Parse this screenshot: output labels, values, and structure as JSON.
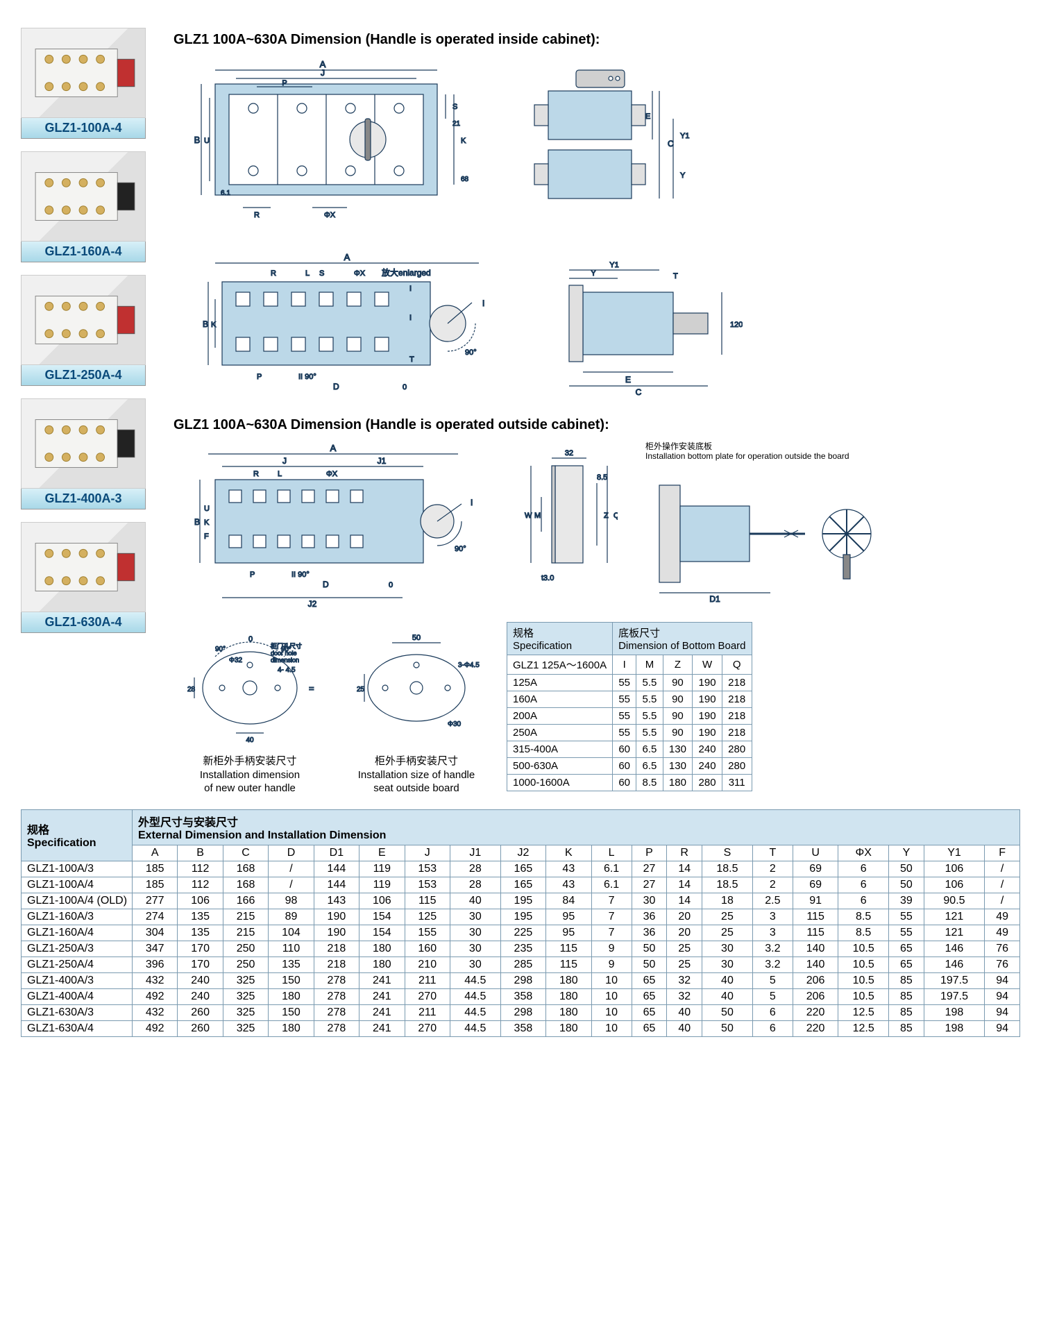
{
  "products": [
    {
      "label": "GLZ1-100A-4"
    },
    {
      "label": "GLZ1-160A-4"
    },
    {
      "label": "GLZ1-250A-4"
    },
    {
      "label": "GLZ1-400A-3"
    },
    {
      "label": "GLZ1-630A-4"
    }
  ],
  "section1": {
    "title": "GLZ1 100A~630A Dimension (Handle is operated inside cabinet):"
  },
  "section2": {
    "title": "GLZ1 100A~630A Dimension (Handle is operated outside cabinet):",
    "install_note_cn": "柜外操作安装底板",
    "install_note_en": "Installation bottom plate for operation outside the board"
  },
  "handle1": {
    "cn": "新柜外手柄安装尺寸",
    "en1": "Installation dimension",
    "en2": "of new outer handle",
    "door_cn": "柜门孔尺寸",
    "door_en1": "door hole",
    "door_en2": "dimension"
  },
  "handle2": {
    "cn": "柜外手柄安装尺寸",
    "en1": "Installation size of handle",
    "en2": "seat outside board"
  },
  "diagram_labels": {
    "enlarged_cn": "放大",
    "enlarged_en": "enlarged"
  },
  "bottom_board_table": {
    "hdr_spec_cn": "规格",
    "hdr_spec_en": "Specification",
    "hdr_dim_cn": "底板尺寸",
    "hdr_dim_en": "Dimension of Bottom Board",
    "range_label": "GLZ1 125A～1600A",
    "cols": [
      "I",
      "M",
      "Z",
      "W",
      "Q"
    ],
    "rows": [
      {
        "spec": "125A",
        "vals": [
          "55",
          "5.5",
          "90",
          "190",
          "218"
        ]
      },
      {
        "spec": "160A",
        "vals": [
          "55",
          "5.5",
          "90",
          "190",
          "218"
        ]
      },
      {
        "spec": "200A",
        "vals": [
          "55",
          "5.5",
          "90",
          "190",
          "218"
        ]
      },
      {
        "spec": "250A",
        "vals": [
          "55",
          "5.5",
          "90",
          "190",
          "218"
        ]
      },
      {
        "spec": "315-400A",
        "vals": [
          "60",
          "6.5",
          "130",
          "240",
          "280"
        ]
      },
      {
        "spec": "500-630A",
        "vals": [
          "60",
          "6.5",
          "130",
          "240",
          "280"
        ]
      },
      {
        "spec": "1000-1600A",
        "vals": [
          "60",
          "8.5",
          "180",
          "280",
          "311"
        ]
      }
    ]
  },
  "main_table": {
    "hdr_spec_cn": "规格",
    "hdr_spec_en": "Specification",
    "hdr_dim_cn": "外型尺寸与安装尺寸",
    "hdr_dim_en": "External Dimension and Installation Dimension",
    "cols": [
      "A",
      "B",
      "C",
      "D",
      "D1",
      "E",
      "J",
      "J1",
      "J2",
      "K",
      "L",
      "P",
      "R",
      "S",
      "T",
      "U",
      "ΦX",
      "Y",
      "Y1",
      "F"
    ],
    "rows": [
      {
        "spec": "GLZ1-100A/3",
        "vals": [
          "185",
          "112",
          "168",
          "/",
          "144",
          "119",
          "153",
          "28",
          "165",
          "43",
          "6.1",
          "27",
          "14",
          "18.5",
          "2",
          "69",
          "6",
          "50",
          "106",
          "/"
        ]
      },
      {
        "spec": "GLZ1-100A/4",
        "vals": [
          "185",
          "112",
          "168",
          "/",
          "144",
          "119",
          "153",
          "28",
          "165",
          "43",
          "6.1",
          "27",
          "14",
          "18.5",
          "2",
          "69",
          "6",
          "50",
          "106",
          "/"
        ]
      },
      {
        "spec": "GLZ1-100A/4 (OLD)",
        "vals": [
          "277",
          "106",
          "166",
          "98",
          "143",
          "106",
          "115",
          "40",
          "195",
          "84",
          "7",
          "30",
          "14",
          "18",
          "2.5",
          "91",
          "6",
          "39",
          "90.5",
          "/"
        ]
      },
      {
        "spec": "GLZ1-160A/3",
        "vals": [
          "274",
          "135",
          "215",
          "89",
          "190",
          "154",
          "125",
          "30",
          "195",
          "95",
          "7",
          "36",
          "20",
          "25",
          "3",
          "115",
          "8.5",
          "55",
          "121",
          "49"
        ]
      },
      {
        "spec": "GLZ1-160A/4",
        "vals": [
          "304",
          "135",
          "215",
          "104",
          "190",
          "154",
          "155",
          "30",
          "225",
          "95",
          "7",
          "36",
          "20",
          "25",
          "3",
          "115",
          "8.5",
          "55",
          "121",
          "49"
        ]
      },
      {
        "spec": "GLZ1-250A/3",
        "vals": [
          "347",
          "170",
          "250",
          "110",
          "218",
          "180",
          "160",
          "30",
          "235",
          "115",
          "9",
          "50",
          "25",
          "30",
          "3.2",
          "140",
          "10.5",
          "65",
          "146",
          "76"
        ]
      },
      {
        "spec": "GLZ1-250A/4",
        "vals": [
          "396",
          "170",
          "250",
          "135",
          "218",
          "180",
          "210",
          "30",
          "285",
          "115",
          "9",
          "50",
          "25",
          "30",
          "3.2",
          "140",
          "10.5",
          "65",
          "146",
          "76"
        ]
      },
      {
        "spec": "GLZ1-400A/3",
        "vals": [
          "432",
          "240",
          "325",
          "150",
          "278",
          "241",
          "211",
          "44.5",
          "298",
          "180",
          "10",
          "65",
          "32",
          "40",
          "5",
          "206",
          "10.5",
          "85",
          "197.5",
          "94"
        ]
      },
      {
        "spec": "GLZ1-400A/4",
        "vals": [
          "492",
          "240",
          "325",
          "180",
          "278",
          "241",
          "270",
          "44.5",
          "358",
          "180",
          "10",
          "65",
          "32",
          "40",
          "5",
          "206",
          "10.5",
          "85",
          "197.5",
          "94"
        ]
      },
      {
        "spec": "GLZ1-630A/3",
        "vals": [
          "432",
          "260",
          "325",
          "150",
          "278",
          "241",
          "211",
          "44.5",
          "298",
          "180",
          "10",
          "65",
          "40",
          "50",
          "6",
          "220",
          "12.5",
          "85",
          "198",
          "94"
        ]
      },
      {
        "spec": "GLZ1-630A/4",
        "vals": [
          "492",
          "260",
          "325",
          "180",
          "278",
          "241",
          "270",
          "44.5",
          "358",
          "180",
          "10",
          "65",
          "40",
          "50",
          "6",
          "220",
          "12.5",
          "85",
          "198",
          "94"
        ]
      }
    ]
  },
  "colors": {
    "blue_fill": "#bcd8e8",
    "line": "#1a3a5a",
    "table_border": "#7a9ab0",
    "table_header": "#d0e4f0",
    "label_grad_top": "#d8f0f8",
    "label_grad_bot": "#a8d8e8",
    "label_text": "#0a4a7a"
  }
}
